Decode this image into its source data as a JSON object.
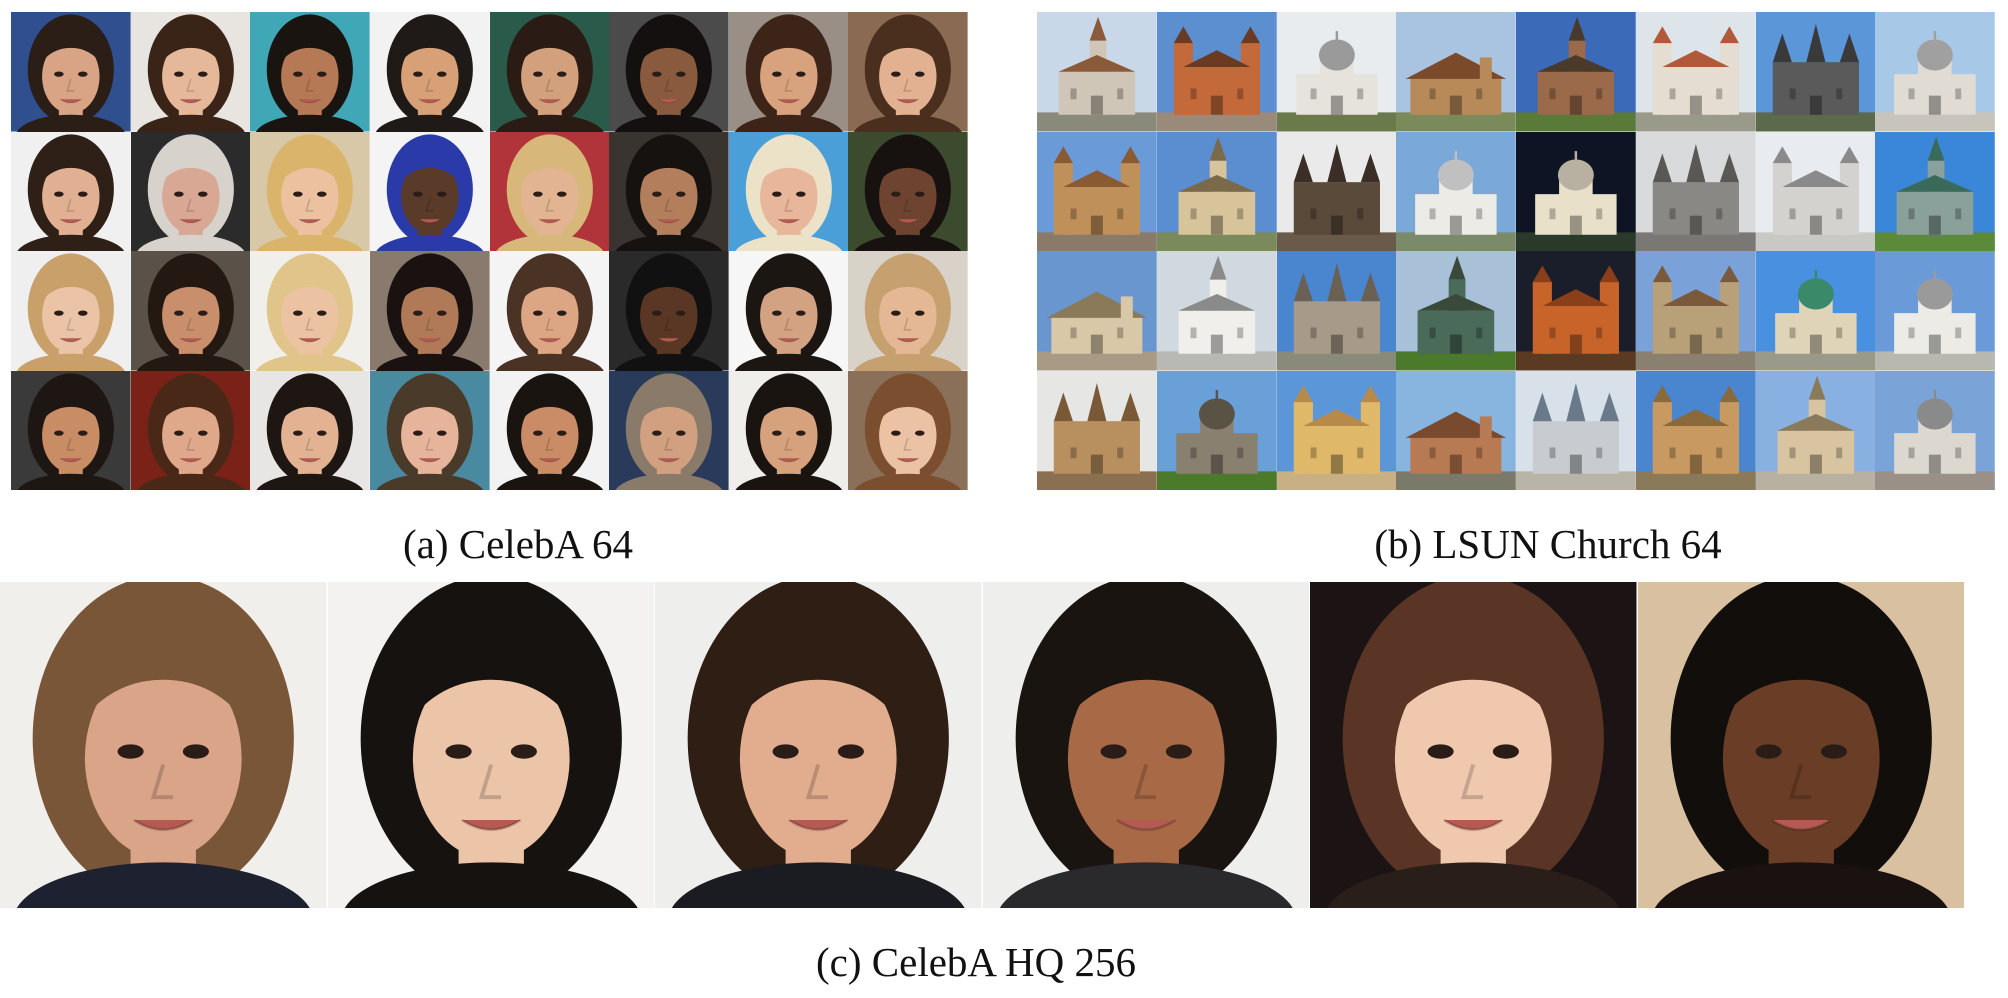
{
  "figure": {
    "panels": [
      {
        "id": "a",
        "caption": "(a) CelebA 64",
        "kind": "face-grid",
        "rows": 4,
        "cols": 8,
        "samples": [
          {
            "bg": "#2f4f8f",
            "skin": "#d9a485",
            "hair": "#2b1e16"
          },
          {
            "bg": "#e8e4e0",
            "skin": "#e6b89a",
            "hair": "#3a2418"
          },
          {
            "bg": "#3fa7b5",
            "skin": "#b57a55",
            "hair": "#1a1411"
          },
          {
            "bg": "#f2f2f2",
            "skin": "#d7a076",
            "hair": "#1f1a17"
          },
          {
            "bg": "#2a5a4a",
            "skin": "#d2a07c",
            "hair": "#2a1c14"
          },
          {
            "bg": "#4b4b4b",
            "skin": "#8a5a3e",
            "hair": "#141010"
          },
          {
            "bg": "#9a8f86",
            "skin": "#d9a27f",
            "hair": "#3c2418"
          },
          {
            "bg": "#8a6a52",
            "skin": "#e2b192",
            "hair": "#4a2e1e"
          },
          {
            "bg": "#f0f0f0",
            "skin": "#e1b093",
            "hair": "#2e1f17"
          },
          {
            "bg": "#2b2b2b",
            "skin": "#d9a894",
            "hair": "#d8d2cc"
          },
          {
            "bg": "#d8c8a8",
            "skin": "#ebc1a0",
            "hair": "#d9b46a"
          },
          {
            "bg": "#f4f4f4",
            "skin": "#5a3a28",
            "hair": "#2a3aa8"
          },
          {
            "bg": "#b0343a",
            "skin": "#e3b491",
            "hair": "#d8b77a"
          },
          {
            "bg": "#3a3430",
            "skin": "#b27e5c",
            "hair": "#161210"
          },
          {
            "bg": "#4a9fd8",
            "skin": "#e8b69a",
            "hair": "#ece2c8"
          },
          {
            "bg": "#3c4a2e",
            "skin": "#6e4430",
            "hair": "#171210"
          },
          {
            "bg": "#efefef",
            "skin": "#ebc4a8",
            "hair": "#c9a06a"
          },
          {
            "bg": "#5a5248",
            "skin": "#c98f6c",
            "hair": "#241812"
          },
          {
            "bg": "#f1efea",
            "skin": "#ecc3a2",
            "hair": "#e0c48a"
          },
          {
            "bg": "#8a7a6e",
            "skin": "#b07a58",
            "hair": "#1a1210"
          },
          {
            "bg": "#f4f4f4",
            "skin": "#dca584",
            "hair": "#4a3224"
          },
          {
            "bg": "#2a2a2a",
            "skin": "#5a3624",
            "hair": "#111111"
          },
          {
            "bg": "#f6f6f6",
            "skin": "#d3a283",
            "hair": "#1c1612"
          },
          {
            "bg": "#d8d2c8",
            "skin": "#e4b894",
            "hair": "#c7a070"
          },
          {
            "bg": "#3a3a3a",
            "skin": "#c98d66",
            "hair": "#1e1612"
          },
          {
            "bg": "#7a2218",
            "skin": "#e0a88a",
            "hair": "#4a2818"
          },
          {
            "bg": "#e8e6e4",
            "skin": "#e2b292",
            "hair": "#1e1612"
          },
          {
            "bg": "#4a8aa0",
            "skin": "#e6b49a",
            "hair": "#4a3a2a"
          },
          {
            "bg": "#f2f2f2",
            "skin": "#c98c66",
            "hair": "#1a1410"
          },
          {
            "bg": "#2a3a5a",
            "skin": "#d0a080",
            "hair": "#8a7a6a"
          },
          {
            "bg": "#f0eeea",
            "skin": "#d6a27e",
            "hair": "#1a1410"
          },
          {
            "bg": "#8a7058",
            "skin": "#ecc2a4",
            "hair": "#7a4e2e"
          }
        ]
      },
      {
        "id": "b",
        "caption": "(b) LSUN Church 64",
        "kind": "church-grid",
        "rows": 4,
        "cols": 8,
        "samples": [
          {
            "sky": "#c9d8e8",
            "wall": "#cfc6b8",
            "roof": "#8a5a3a",
            "ground": "#8a8a7a",
            "form": "spire"
          },
          {
            "sky": "#5b8fd0",
            "wall": "#c46a3a",
            "roof": "#6a3a22",
            "ground": "#9a8a7a",
            "form": "towers"
          },
          {
            "sky": "#e8ecef",
            "wall": "#e6e2dc",
            "roof": "#9a9a9a",
            "ground": "#6a7a4a",
            "form": "dome"
          },
          {
            "sky": "#a8c4e0",
            "wall": "#b88a5a",
            "roof": "#7a4a2a",
            "ground": "#7a8a5a",
            "form": "hall"
          },
          {
            "sky": "#3a6ab8",
            "wall": "#9a6a4a",
            "roof": "#4a3a2a",
            "ground": "#5a7a3a",
            "form": "spire"
          },
          {
            "sky": "#dde4ea",
            "wall": "#e6ddd2",
            "roof": "#b05a3a",
            "ground": "#9a9a8a",
            "form": "towers"
          },
          {
            "sky": "#5a96d8",
            "wall": "#5a5a5a",
            "roof": "#3a3a3a",
            "ground": "#5a6a4a",
            "form": "gothic"
          },
          {
            "sky": "#a8c8e8",
            "wall": "#e0dcd4",
            "roof": "#a0a0a0",
            "ground": "#c8c4bc",
            "form": "dome"
          },
          {
            "sky": "#6a9ad8",
            "wall": "#c0905a",
            "roof": "#8a5a32",
            "ground": "#8a7a6a",
            "form": "towers"
          },
          {
            "sky": "#5a8ed0",
            "wall": "#d8c49a",
            "roof": "#7a6a4a",
            "ground": "#7a8a5a",
            "form": "spire"
          },
          {
            "sky": "#eaeaea",
            "wall": "#5a4a3a",
            "roof": "#3a2e26",
            "ground": "#6a5a4a",
            "form": "gothic"
          },
          {
            "sky": "#7aa8d8",
            "wall": "#ecebe6",
            "roof": "#c0c0c0",
            "ground": "#7a8a6a",
            "form": "dome"
          },
          {
            "sky": "#0e1424",
            "wall": "#e8e0c8",
            "roof": "#b8b0a0",
            "ground": "#2a3a2a",
            "form": "dome"
          },
          {
            "sky": "#d8dadc",
            "wall": "#8a8884",
            "roof": "#5a5854",
            "ground": "#7a7874",
            "form": "gothic"
          },
          {
            "sky": "#e8ecf0",
            "wall": "#d4d2ce",
            "roof": "#8a8a8a",
            "ground": "#c8c8c4",
            "form": "towers"
          },
          {
            "sky": "#3a86d8",
            "wall": "#8aa09a",
            "roof": "#3a6a5a",
            "ground": "#5a8a3a",
            "form": "spire"
          },
          {
            "sky": "#6a96d0",
            "wall": "#d8c8a8",
            "roof": "#8a7a5a",
            "ground": "#a89a84",
            "form": "hall"
          },
          {
            "sky": "#d0d8e0",
            "wall": "#f0efec",
            "roof": "#8a8a8a",
            "ground": "#b8b8b4",
            "form": "spire"
          },
          {
            "sky": "#4a86d0",
            "wall": "#a89a88",
            "roof": "#6a6054",
            "ground": "#8a8a7a",
            "form": "gothic"
          },
          {
            "sky": "#a8c0d8",
            "wall": "#4a6a5a",
            "roof": "#3a4a3a",
            "ground": "#4a7a2a",
            "form": "spire"
          },
          {
            "sky": "#1a1e2a",
            "wall": "#c8642a",
            "roof": "#8a3e1a",
            "ground": "#5a3a22",
            "form": "towers"
          },
          {
            "sky": "#7aa2d8",
            "wall": "#b8a078",
            "roof": "#7a5a3a",
            "ground": "#8a8070",
            "form": "towers"
          },
          {
            "sky": "#4a90e0",
            "wall": "#e0d4b8",
            "roof": "#3a8a6a",
            "ground": "#9a9a8a",
            "form": "dome"
          },
          {
            "sky": "#6a9ad8",
            "wall": "#ecebe6",
            "roof": "#9a9a9a",
            "ground": "#b8b8b0",
            "form": "dome"
          },
          {
            "sky": "#e6e6e4",
            "wall": "#b89060",
            "roof": "#7a5a36",
            "ground": "#8a7050",
            "form": "gothic"
          },
          {
            "sky": "#6aa0d8",
            "wall": "#8a8070",
            "roof": "#5a5244",
            "ground": "#4a7a2a",
            "form": "dome"
          },
          {
            "sky": "#5a96d8",
            "wall": "#e0b86a",
            "roof": "#b88a4a",
            "ground": "#c8b084",
            "form": "towers"
          },
          {
            "sky": "#88b4e0",
            "wall": "#b87a52",
            "roof": "#7a4a2e",
            "ground": "#7a7a6a",
            "form": "hall"
          },
          {
            "sky": "#d8e0ea",
            "wall": "#c8ccd0",
            "roof": "#6a7a8a",
            "ground": "#b8b4a8",
            "form": "gothic"
          },
          {
            "sky": "#4a86d0",
            "wall": "#c89a62",
            "roof": "#8a6a3a",
            "ground": "#8a7a5a",
            "form": "towers"
          },
          {
            "sky": "#88b0e0",
            "wall": "#d8c4a0",
            "roof": "#8a7a5a",
            "ground": "#b8b0a0",
            "form": "spire"
          },
          {
            "sky": "#7aa4d8",
            "wall": "#dcd8d0",
            "roof": "#8a8a8a",
            "ground": "#9a9088",
            "form": "dome"
          }
        ]
      },
      {
        "id": "c",
        "caption": "(c) CelebA HQ 256",
        "kind": "face-row",
        "rows": 1,
        "cols": 6,
        "samples": [
          {
            "bg": "#f0efec",
            "skin": "#d9a488",
            "hair": "#7a5638",
            "shirt": "#1e2230"
          },
          {
            "bg": "#f3f2f0",
            "skin": "#ecc4a8",
            "hair": "#161210",
            "shirt": "#161210"
          },
          {
            "bg": "#eeeeec",
            "skin": "#e2ad8e",
            "hair": "#2e1e14",
            "shirt": "#1a1c22"
          },
          {
            "bg": "#eeeeec",
            "skin": "#a86a46",
            "hair": "#1a1410",
            "shirt": "#2a2a2c"
          },
          {
            "bg": "#1c1414",
            "skin": "#f0c8ae",
            "hair": "#5a3424",
            "shirt": "#2a1e1a"
          },
          {
            "bg": "#d8c0a0",
            "skin": "#6a3e26",
            "hair": "#120e0c",
            "shirt": "#1a1210"
          }
        ]
      }
    ]
  }
}
